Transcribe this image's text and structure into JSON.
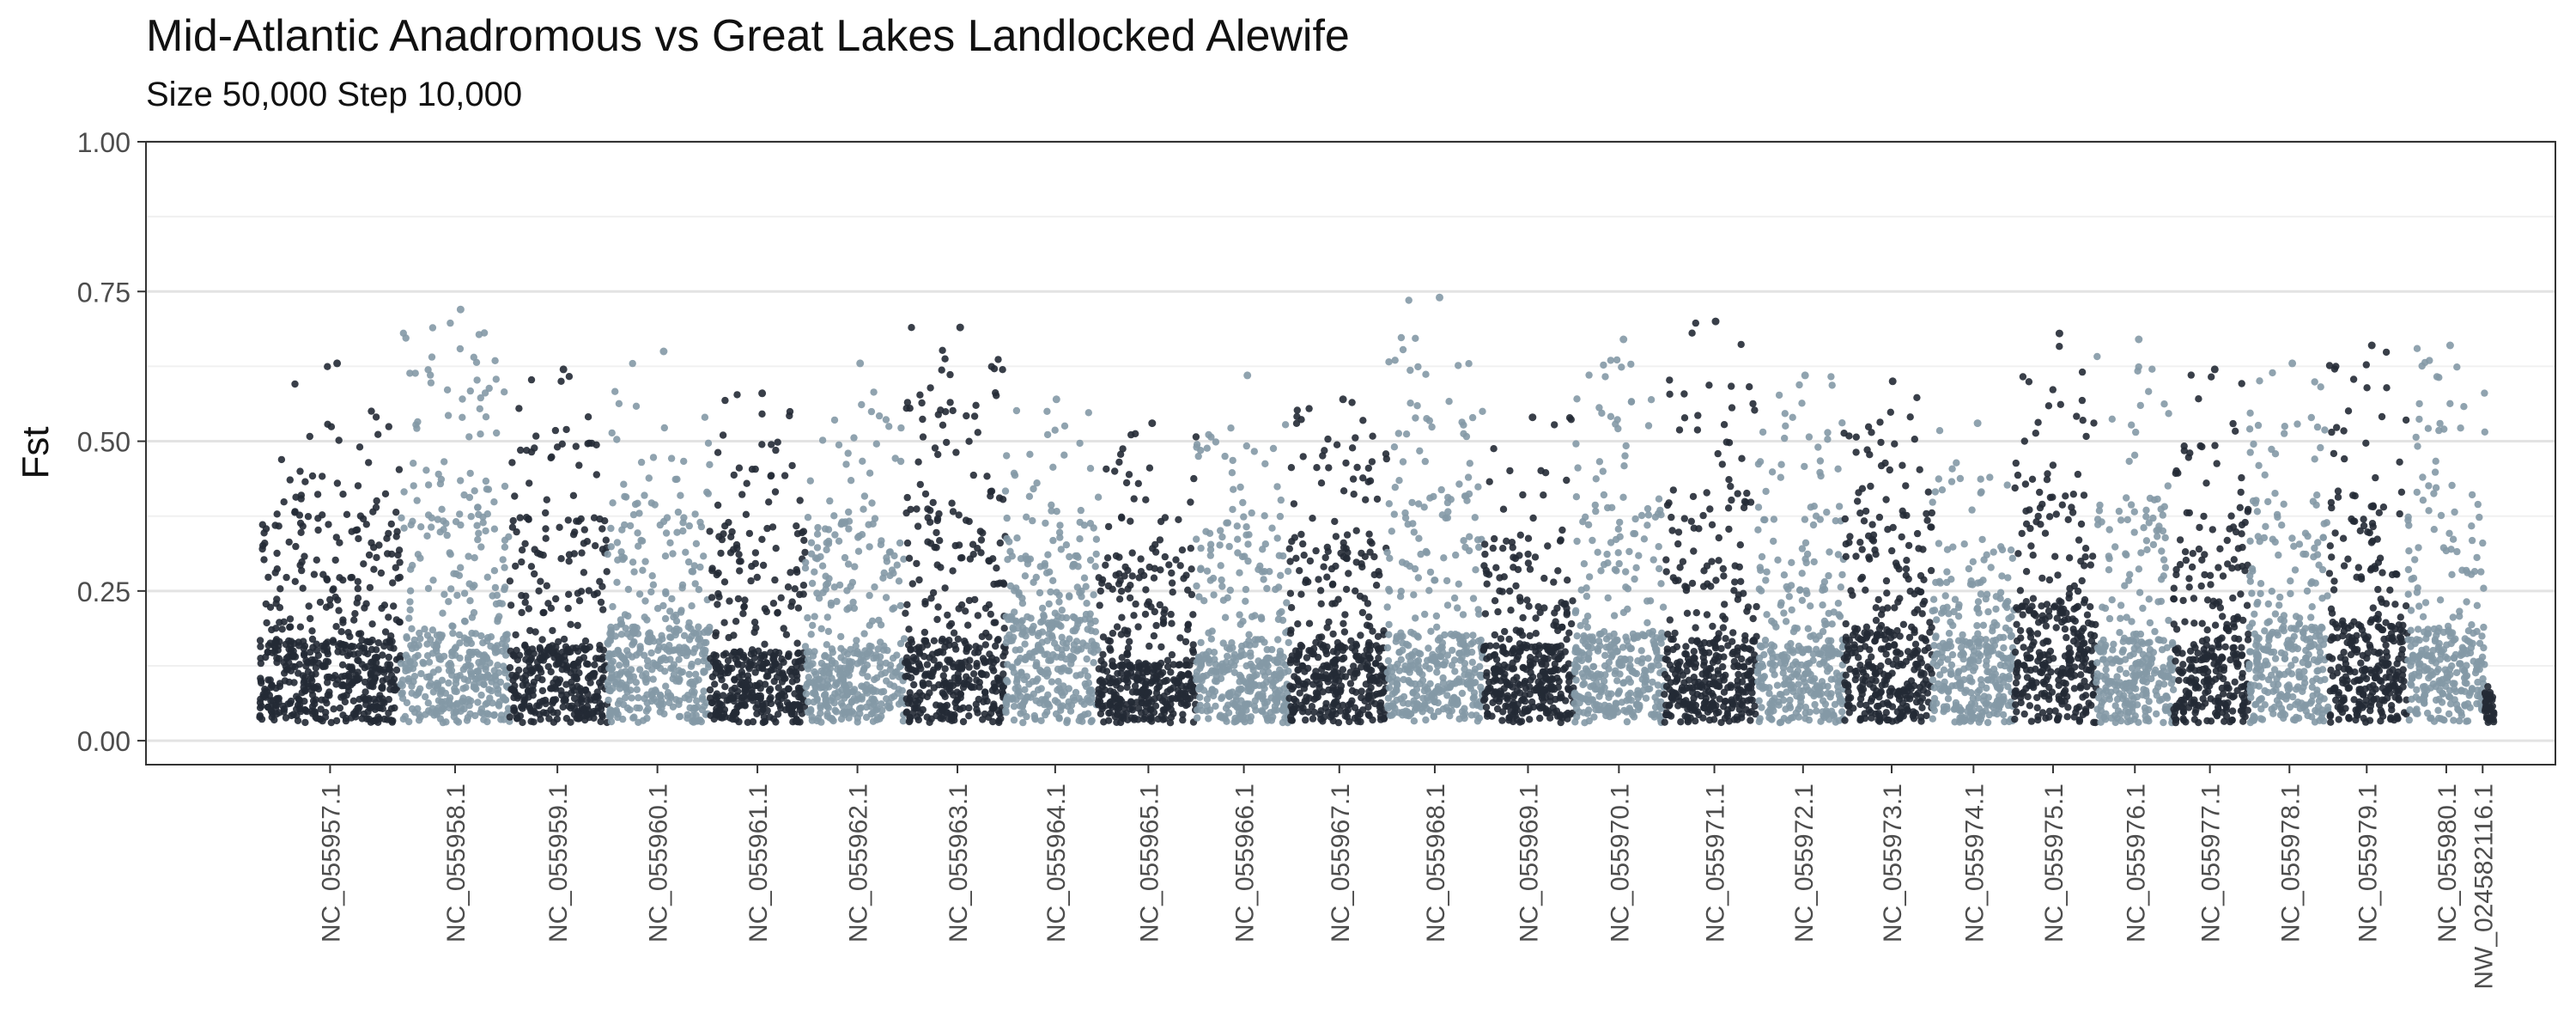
{
  "chart_data": {
    "type": "scatter",
    "title": "Mid-Atlantic Anadromous vs Great Lakes Landlocked Alewife",
    "subtitle": "Size 50,000 Step 10,000",
    "ylabel": "Fst",
    "xlabel": "",
    "ylim": [
      0,
      1
    ],
    "y_ticks": [
      "0.00",
      "0.25",
      "0.50",
      "0.75",
      "1.00"
    ],
    "grid": true,
    "legend": "none",
    "colors": {
      "dark": "#232a35",
      "light": "#8499a6"
    },
    "series": [
      {
        "label": "NC_055957.1",
        "tick": 0.081,
        "start": 0.05,
        "end": 0.112,
        "base": 0.14,
        "peak": 0.63
      },
      {
        "label": "NC_055958.1",
        "tick": 0.136,
        "start": 0.112,
        "end": 0.16,
        "base": 0.15,
        "peak": 0.72
      },
      {
        "label": "NC_055959.1",
        "tick": 0.181,
        "start": 0.16,
        "end": 0.203,
        "base": 0.13,
        "peak": 0.62
      },
      {
        "label": "NC_055960.1",
        "tick": 0.225,
        "start": 0.203,
        "end": 0.248,
        "base": 0.16,
        "peak": 0.65
      },
      {
        "label": "NC_055961.1",
        "tick": 0.269,
        "start": 0.248,
        "end": 0.29,
        "base": 0.12,
        "peak": 0.58
      },
      {
        "label": "NC_055962.1",
        "tick": 0.313,
        "start": 0.29,
        "end": 0.334,
        "base": 0.12,
        "peak": 0.63
      },
      {
        "label": "NC_055963.1",
        "tick": 0.357,
        "start": 0.334,
        "end": 0.378,
        "base": 0.14,
        "peak": 0.69
      },
      {
        "label": "NC_055964.1",
        "tick": 0.4,
        "start": 0.378,
        "end": 0.419,
        "base": 0.18,
        "peak": 0.57
      },
      {
        "label": "NC_055965.1",
        "tick": 0.441,
        "start": 0.419,
        "end": 0.462,
        "base": 0.1,
        "peak": 0.53
      },
      {
        "label": "NC_055966.1",
        "tick": 0.483,
        "start": 0.462,
        "end": 0.503,
        "base": 0.14,
        "peak": 0.61
      },
      {
        "label": "NC_055967.1",
        "tick": 0.525,
        "start": 0.503,
        "end": 0.546,
        "base": 0.13,
        "peak": 0.57
      },
      {
        "label": "NC_055968.1",
        "tick": 0.567,
        "start": 0.546,
        "end": 0.588,
        "base": 0.15,
        "peak": 0.74
      },
      {
        "label": "NC_055969.1",
        "tick": 0.608,
        "start": 0.588,
        "end": 0.628,
        "base": 0.13,
        "peak": 0.54
      },
      {
        "label": "NC_055970.1",
        "tick": 0.648,
        "start": 0.628,
        "end": 0.668,
        "base": 0.15,
        "peak": 0.67
      },
      {
        "label": "NC_055971.1",
        "tick": 0.69,
        "start": 0.668,
        "end": 0.709,
        "base": 0.14,
        "peak": 0.7
      },
      {
        "label": "NC_055972.1",
        "tick": 0.729,
        "start": 0.709,
        "end": 0.747,
        "base": 0.13,
        "peak": 0.61
      },
      {
        "label": "NC_055973.1",
        "tick": 0.768,
        "start": 0.747,
        "end": 0.786,
        "base": 0.16,
        "peak": 0.6
      },
      {
        "label": "NC_055974.1",
        "tick": 0.804,
        "start": 0.786,
        "end": 0.822,
        "base": 0.14,
        "peak": 0.53
      },
      {
        "label": "NC_055975.1",
        "tick": 0.839,
        "start": 0.822,
        "end": 0.858,
        "base": 0.2,
        "peak": 0.68
      },
      {
        "label": "NC_055976.1",
        "tick": 0.875,
        "start": 0.858,
        "end": 0.892,
        "base": 0.14,
        "peak": 0.67
      },
      {
        "label": "NC_055977.1",
        "tick": 0.908,
        "start": 0.892,
        "end": 0.925,
        "base": 0.13,
        "peak": 0.62
      },
      {
        "label": "NC_055978.1",
        "tick": 0.943,
        "start": 0.925,
        "end": 0.96,
        "base": 0.16,
        "peak": 0.63
      },
      {
        "label": "NC_055979.1",
        "tick": 0.977,
        "start": 0.96,
        "end": 0.995,
        "base": 0.17,
        "peak": 0.66
      },
      {
        "label": "NC_055980.1",
        "tick": 1.012,
        "start": 0.995,
        "end": 1.029,
        "base": 0.16,
        "peak": 0.66
      },
      {
        "label": "NW_024582116.1",
        "tick": 1.028,
        "start": 1.029,
        "end": 1.033,
        "base": 0.05,
        "peak": 0.08
      }
    ]
  }
}
